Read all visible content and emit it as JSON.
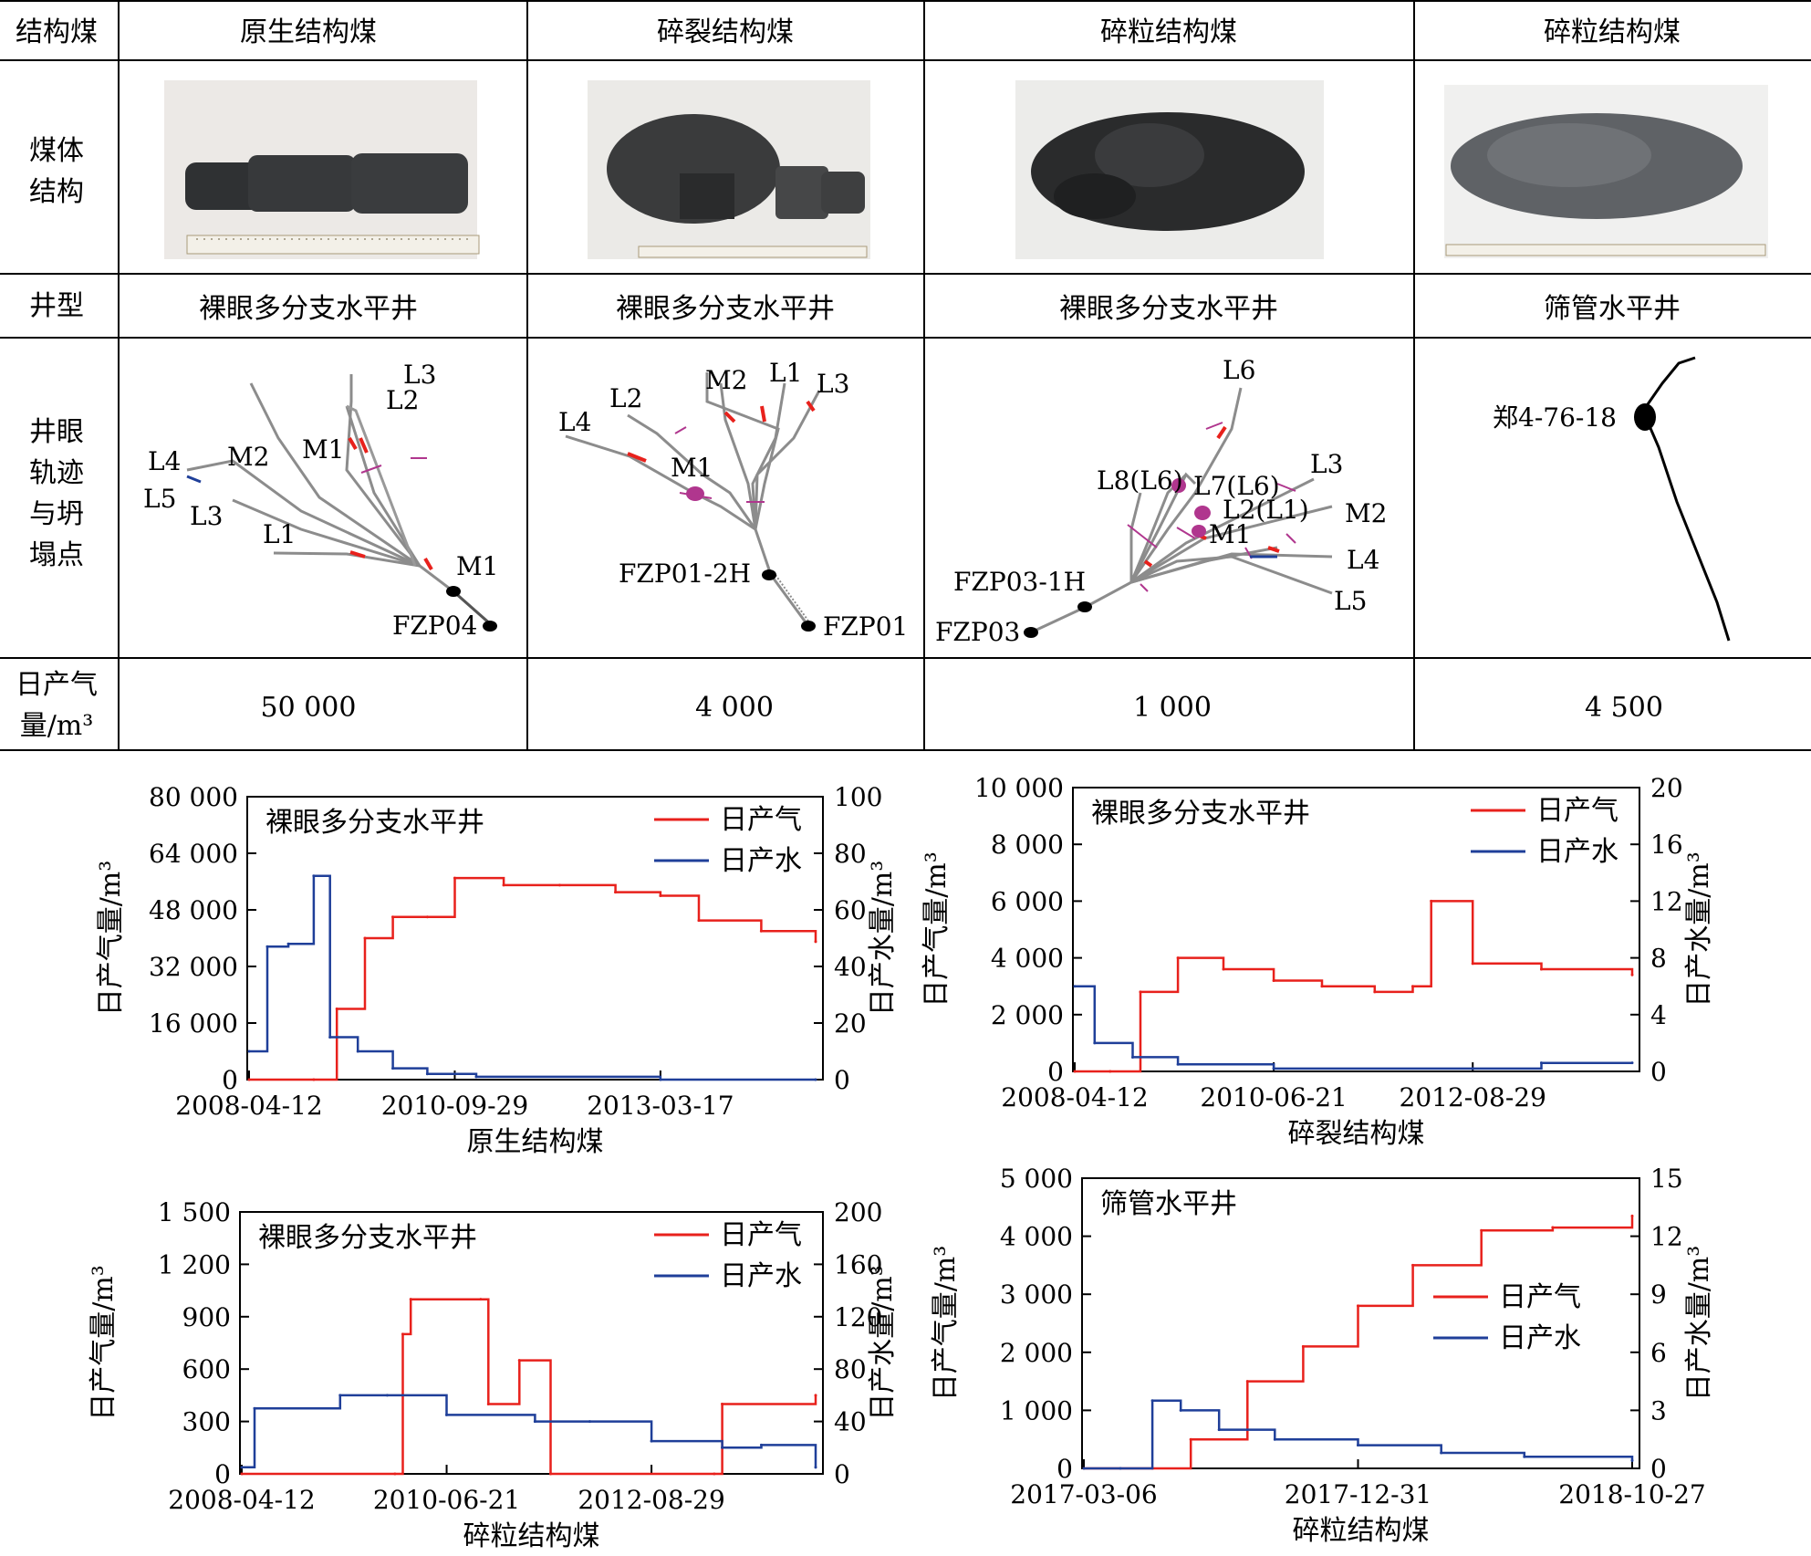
{
  "table": {
    "row_headers": [
      "结构煤",
      "煤体\n结构",
      "井型",
      "井眼\n轨迹\n与坍\n塌点",
      "日产气\n量/m³"
    ],
    "header_row": [
      "原生结构煤",
      "碎裂结构煤",
      "碎粒结构煤",
      "碎粒结构煤"
    ],
    "well_types": [
      "裸眼多分支水平井",
      "裸眼多分支水平井",
      "裸眼多分支水平井",
      "筛管水平井"
    ],
    "daily_gas": [
      "50 000",
      "4 000",
      "1 000",
      "4 500"
    ]
  },
  "trajectories": {
    "t1": {
      "labels": [
        "L3",
        "L2",
        "M1",
        "M2",
        "L4",
        "L5",
        "L3",
        "L1",
        "M1",
        "FZP04"
      ]
    },
    "t2": {
      "labels": [
        "M2",
        "L1",
        "L3",
        "L2",
        "L4",
        "M1",
        "FZP01-2H",
        "FZP01"
      ]
    },
    "t3": {
      "labels": [
        "L6",
        "L3",
        "L8(L6)",
        "L7(L6)",
        "L2(L1)",
        "M2",
        "M1",
        "L4",
        "L5",
        "FZP03-1H",
        "FZP03"
      ]
    },
    "t4": {
      "labels": [
        "郑4-76-18"
      ]
    }
  },
  "colors": {
    "gas": "#e8211c",
    "water": "#1f3f99",
    "trajectory": "#8c8c8c",
    "collapse": "#b0368e"
  },
  "chart_data": [
    {
      "type": "line",
      "title": "裸眼多分支水平井",
      "xlabel": "原生结构煤",
      "ylabel": "日产气量/m³",
      "y2label": "日产水量/m³",
      "x_ticks": [
        "2008-04-12",
        "2010-09-29",
        "2013-03-17"
      ],
      "y_ticks": [
        "0",
        "16 000",
        "32 000",
        "48 000",
        "64 000",
        "80 000"
      ],
      "y2_ticks": [
        "0",
        "20",
        "40",
        "60",
        "80",
        "100"
      ],
      "ylim": [
        0,
        80000
      ],
      "y2lim": [
        0,
        100
      ],
      "legend": [
        "日产气",
        "日产水"
      ],
      "series": [
        {
          "name": "日产气",
          "axis": "left",
          "x": [
            "2008-04-12",
            "2009-01-20",
            "2009-05-01",
            "2009-09-01",
            "2010-01-01",
            "2010-06-01",
            "2010-09-29",
            "2011-05-01",
            "2012-01-01",
            "2012-09-01",
            "2013-03-17",
            "2013-09-01",
            "2014-06-01",
            "2015-01-25"
          ],
          "values": [
            0,
            0,
            20000,
            40000,
            46000,
            46000,
            57000,
            55000,
            55000,
            53000,
            52000,
            45000,
            42000,
            39000
          ]
        },
        {
          "name": "日产水",
          "axis": "right",
          "x": [
            "2008-04-12",
            "2008-07-01",
            "2008-10-01",
            "2009-01-20",
            "2009-04-01",
            "2009-08-01",
            "2010-01-01",
            "2010-06-01",
            "2011-01-01",
            "2013-03-17",
            "2015-01-25"
          ],
          "values": [
            10,
            47,
            48,
            72,
            15,
            10,
            4,
            2,
            1,
            0,
            0
          ]
        }
      ]
    },
    {
      "type": "line",
      "title": "裸眼多分支水平井",
      "xlabel": "碎裂结构煤",
      "ylabel": "日产气量/m³",
      "y2label": "日产水量/m³",
      "x_ticks": [
        "2008-04-12",
        "2010-06-21",
        "2012-08-29"
      ],
      "y_ticks": [
        "0",
        "2 000",
        "4 000",
        "6 000",
        "8 000",
        "10 000"
      ],
      "y2_ticks": [
        "0",
        "4",
        "8",
        "12",
        "16",
        "20"
      ],
      "ylim": [
        0,
        10000
      ],
      "y2lim": [
        0,
        20
      ],
      "legend": [
        "日产气",
        "日产水"
      ],
      "series": [
        {
          "name": "日产气",
          "axis": "left",
          "x": [
            "2008-04-12",
            "2008-09-01",
            "2009-01-01",
            "2009-06-01",
            "2009-12-01",
            "2010-06-21",
            "2011-01-01",
            "2011-08-01",
            "2012-01-01",
            "2012-03-15",
            "2012-08-29",
            "2013-06-01",
            "2014-06-01"
          ],
          "values": [
            0,
            0,
            2800,
            4000,
            3600,
            3200,
            3000,
            2800,
            3000,
            6000,
            3800,
            3600,
            3400
          ]
        },
        {
          "name": "日产水",
          "axis": "right",
          "x": [
            "2008-04-12",
            "2008-07-01",
            "2008-12-01",
            "2009-06-01",
            "2010-06-21",
            "2012-08-29",
            "2013-06-01",
            "2014-06-01"
          ],
          "values": [
            6,
            2,
            1,
            0.5,
            0.2,
            0.2,
            0.6,
            0.6
          ]
        }
      ]
    },
    {
      "type": "line",
      "title": "裸眼多分支水平井",
      "xlabel": "碎粒结构煤",
      "ylabel": "日产气量/m³",
      "y2label": "日产水量/m³",
      "x_ticks": [
        "2008-04-12",
        "2010-06-21",
        "2012-08-29"
      ],
      "y_ticks": [
        "0",
        "300",
        "600",
        "900",
        "1 200",
        "1 500"
      ],
      "y2_ticks": [
        "0",
        "40",
        "80",
        "120",
        "160",
        "200"
      ],
      "ylim": [
        0,
        1500
      ],
      "y2lim": [
        0,
        200
      ],
      "legend": [
        "日产气",
        "日产水"
      ],
      "series": [
        {
          "name": "日产气",
          "axis": "left",
          "x": [
            "2008-04-12",
            "2009-12-01",
            "2010-01-01",
            "2010-02-01",
            "2010-11-01",
            "2010-12-01",
            "2011-04-01",
            "2011-08-01",
            "2013-05-01",
            "2013-06-01",
            "2014-06-01"
          ],
          "values": [
            0,
            0,
            800,
            1000,
            1000,
            400,
            650,
            0,
            0,
            400,
            450
          ]
        },
        {
          "name": "日产水",
          "axis": "right",
          "x": [
            "2008-04-12",
            "2008-06-01",
            "2009-05-01",
            "2009-11-01",
            "2010-06-21",
            "2011-06-01",
            "2012-01-01",
            "2012-08-29",
            "2013-06-01",
            "2013-11-01",
            "2014-06-01"
          ],
          "values": [
            5,
            50,
            60,
            60,
            45,
            40,
            40,
            25,
            20,
            22,
            5
          ]
        }
      ]
    },
    {
      "type": "line",
      "title": "筛管水平井",
      "xlabel": "碎粒结构煤",
      "ylabel": "日产气量/m³",
      "y2label": "日产水量/m³",
      "x_ticks": [
        "2017-03-06",
        "2017-12-31",
        "2018-10-27"
      ],
      "y_ticks": [
        "0",
        "1 000",
        "2 000",
        "3 000",
        "4 000",
        "5 000"
      ],
      "y2_ticks": [
        "0",
        "3",
        "6",
        "9",
        "12",
        "15"
      ],
      "ylim": [
        0,
        5000
      ],
      "y2lim": [
        0,
        15
      ],
      "legend": [
        "日产气",
        "日产水"
      ],
      "series": [
        {
          "name": "日产气",
          "axis": "left",
          "x": [
            "2017-03-06",
            "2017-05-20",
            "2017-07-01",
            "2017-09-01",
            "2017-11-01",
            "2017-12-31",
            "2018-03-01",
            "2018-05-15",
            "2018-08-01",
            "2018-10-27"
          ],
          "values": [
            0,
            0,
            500,
            1500,
            2100,
            2800,
            3500,
            4100,
            4150,
            4350
          ]
        },
        {
          "name": "日产水",
          "axis": "right",
          "x": [
            "2017-03-06",
            "2017-04-15",
            "2017-05-20",
            "2017-06-20",
            "2017-08-01",
            "2017-10-01",
            "2017-12-31",
            "2018-04-01",
            "2018-07-01",
            "2018-10-27"
          ],
          "values": [
            0,
            0,
            3.5,
            3.0,
            2.0,
            1.5,
            1.2,
            0.8,
            0.6,
            0.4
          ]
        }
      ]
    }
  ]
}
